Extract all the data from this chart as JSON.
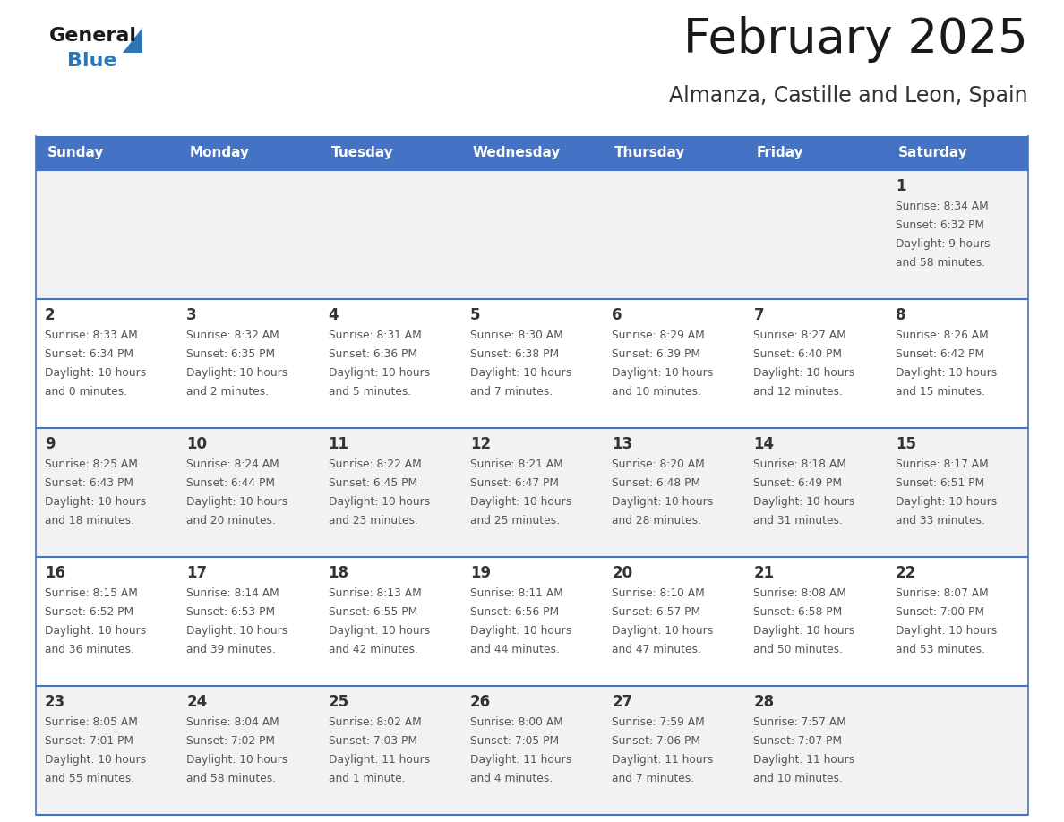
{
  "title": "February 2025",
  "subtitle": "Almanza, Castille and Leon, Spain",
  "days_of_week": [
    "Sunday",
    "Monday",
    "Tuesday",
    "Wednesday",
    "Thursday",
    "Friday",
    "Saturday"
  ],
  "header_bg": "#4472C4",
  "header_text": "#FFFFFF",
  "row_bg_odd": "#FFFFFF",
  "row_bg_even": "#F2F2F2",
  "separator_color": "#4472C4",
  "day_number_color": "#333333",
  "cell_text_color": "#555555",
  "title_color": "#1a1a1a",
  "subtitle_color": "#333333",
  "logo_general_color": "#1a1a1a",
  "logo_blue_color": "#2E75B6",
  "calendar_data": [
    [
      {
        "day": null,
        "sunrise": null,
        "sunset": null,
        "daylight": null
      },
      {
        "day": null,
        "sunrise": null,
        "sunset": null,
        "daylight": null
      },
      {
        "day": null,
        "sunrise": null,
        "sunset": null,
        "daylight": null
      },
      {
        "day": null,
        "sunrise": null,
        "sunset": null,
        "daylight": null
      },
      {
        "day": null,
        "sunrise": null,
        "sunset": null,
        "daylight": null
      },
      {
        "day": null,
        "sunrise": null,
        "sunset": null,
        "daylight": null
      },
      {
        "day": 1,
        "sunrise": "8:34 AM",
        "sunset": "6:32 PM",
        "daylight": "9 hours\nand 58 minutes."
      }
    ],
    [
      {
        "day": 2,
        "sunrise": "8:33 AM",
        "sunset": "6:34 PM",
        "daylight": "10 hours\nand 0 minutes."
      },
      {
        "day": 3,
        "sunrise": "8:32 AM",
        "sunset": "6:35 PM",
        "daylight": "10 hours\nand 2 minutes."
      },
      {
        "day": 4,
        "sunrise": "8:31 AM",
        "sunset": "6:36 PM",
        "daylight": "10 hours\nand 5 minutes."
      },
      {
        "day": 5,
        "sunrise": "8:30 AM",
        "sunset": "6:38 PM",
        "daylight": "10 hours\nand 7 minutes."
      },
      {
        "day": 6,
        "sunrise": "8:29 AM",
        "sunset": "6:39 PM",
        "daylight": "10 hours\nand 10 minutes."
      },
      {
        "day": 7,
        "sunrise": "8:27 AM",
        "sunset": "6:40 PM",
        "daylight": "10 hours\nand 12 minutes."
      },
      {
        "day": 8,
        "sunrise": "8:26 AM",
        "sunset": "6:42 PM",
        "daylight": "10 hours\nand 15 minutes."
      }
    ],
    [
      {
        "day": 9,
        "sunrise": "8:25 AM",
        "sunset": "6:43 PM",
        "daylight": "10 hours\nand 18 minutes."
      },
      {
        "day": 10,
        "sunrise": "8:24 AM",
        "sunset": "6:44 PM",
        "daylight": "10 hours\nand 20 minutes."
      },
      {
        "day": 11,
        "sunrise": "8:22 AM",
        "sunset": "6:45 PM",
        "daylight": "10 hours\nand 23 minutes."
      },
      {
        "day": 12,
        "sunrise": "8:21 AM",
        "sunset": "6:47 PM",
        "daylight": "10 hours\nand 25 minutes."
      },
      {
        "day": 13,
        "sunrise": "8:20 AM",
        "sunset": "6:48 PM",
        "daylight": "10 hours\nand 28 minutes."
      },
      {
        "day": 14,
        "sunrise": "8:18 AM",
        "sunset": "6:49 PM",
        "daylight": "10 hours\nand 31 minutes."
      },
      {
        "day": 15,
        "sunrise": "8:17 AM",
        "sunset": "6:51 PM",
        "daylight": "10 hours\nand 33 minutes."
      }
    ],
    [
      {
        "day": 16,
        "sunrise": "8:15 AM",
        "sunset": "6:52 PM",
        "daylight": "10 hours\nand 36 minutes."
      },
      {
        "day": 17,
        "sunrise": "8:14 AM",
        "sunset": "6:53 PM",
        "daylight": "10 hours\nand 39 minutes."
      },
      {
        "day": 18,
        "sunrise": "8:13 AM",
        "sunset": "6:55 PM",
        "daylight": "10 hours\nand 42 minutes."
      },
      {
        "day": 19,
        "sunrise": "8:11 AM",
        "sunset": "6:56 PM",
        "daylight": "10 hours\nand 44 minutes."
      },
      {
        "day": 20,
        "sunrise": "8:10 AM",
        "sunset": "6:57 PM",
        "daylight": "10 hours\nand 47 minutes."
      },
      {
        "day": 21,
        "sunrise": "8:08 AM",
        "sunset": "6:58 PM",
        "daylight": "10 hours\nand 50 minutes."
      },
      {
        "day": 22,
        "sunrise": "8:07 AM",
        "sunset": "7:00 PM",
        "daylight": "10 hours\nand 53 minutes."
      }
    ],
    [
      {
        "day": 23,
        "sunrise": "8:05 AM",
        "sunset": "7:01 PM",
        "daylight": "10 hours\nand 55 minutes."
      },
      {
        "day": 24,
        "sunrise": "8:04 AM",
        "sunset": "7:02 PM",
        "daylight": "10 hours\nand 58 minutes."
      },
      {
        "day": 25,
        "sunrise": "8:02 AM",
        "sunset": "7:03 PM",
        "daylight": "11 hours\nand 1 minute."
      },
      {
        "day": 26,
        "sunrise": "8:00 AM",
        "sunset": "7:05 PM",
        "daylight": "11 hours\nand 4 minutes."
      },
      {
        "day": 27,
        "sunrise": "7:59 AM",
        "sunset": "7:06 PM",
        "daylight": "11 hours\nand 7 minutes."
      },
      {
        "day": 28,
        "sunrise": "7:57 AM",
        "sunset": "7:07 PM",
        "daylight": "11 hours\nand 10 minutes."
      },
      {
        "day": null,
        "sunrise": null,
        "sunset": null,
        "daylight": null
      }
    ]
  ]
}
